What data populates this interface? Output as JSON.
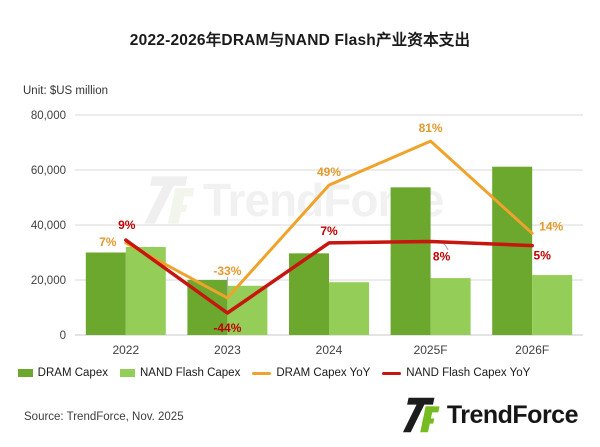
{
  "page": {
    "title": "2022-2026年DRAM与NAND Flash产业资本支出",
    "unit_label": "Unit: $US million",
    "source": "Source: TrendForce, Nov. 2025",
    "watermark_text": "TrendForce",
    "logo_text": "TrendForce"
  },
  "colors": {
    "dram_bar": "#6ca72e",
    "nand_bar": "#94ce58",
    "dram_yoy_line": "#efa32c",
    "nand_yoy_line": "#c7150f",
    "dram_yoy_label": "#e39a2d",
    "nand_yoy_label": "#c00000",
    "grid": "#d9d9d9",
    "logo_green": "#76bc21"
  },
  "chart_data": {
    "type": "bar",
    "subtype": "bar-line-combo",
    "title": "2022-2026年DRAM与NAND Flash产业资本支出",
    "unit": "Unit: $US million",
    "categories": [
      "2022",
      "2023",
      "2024",
      "2025F",
      "2026F"
    ],
    "bar_series": [
      {
        "name": "DRAM Capex",
        "color": "#6ca72e",
        "values": [
          30000,
          20000,
          29700,
          53700,
          61200
        ]
      },
      {
        "name": "NAND Flash Capex",
        "color": "#94ce58",
        "values": [
          32000,
          17900,
          19200,
          20700,
          21800
        ]
      }
    ],
    "line_series": [
      {
        "name": "DRAM Capex YoY",
        "color": "#efa32c",
        "label_color": "#e39a2d",
        "values_pct": [
          7,
          -33,
          49,
          81,
          14
        ],
        "labels": [
          "7%",
          "-33%",
          "49%",
          "81%",
          "14%"
        ]
      },
      {
        "name": "NAND Flash Capex YoY",
        "color": "#c7150f",
        "label_color": "#c00000",
        "values_pct": [
          9,
          -44,
          7,
          8,
          5
        ],
        "labels": [
          "9%",
          "-44%",
          "7%",
          "8%",
          "5%"
        ]
      }
    ],
    "y_axis": {
      "range": [
        0,
        80000
      ],
      "ticks": [
        {
          "label": "0",
          "value": 0
        },
        {
          "label": "20,000",
          "value": 20000
        },
        {
          "label": "40,000",
          "value": 40000
        },
        {
          "label": "60,000",
          "value": 60000
        },
        {
          "label": "80,000",
          "value": 80000
        }
      ],
      "grid": true
    },
    "secondary_axis": {
      "visible": false,
      "range_pct": [
        -60,
        100
      ]
    },
    "legend_position": "bottom",
    "source": "Source: TrendForce, Nov. 2025"
  }
}
